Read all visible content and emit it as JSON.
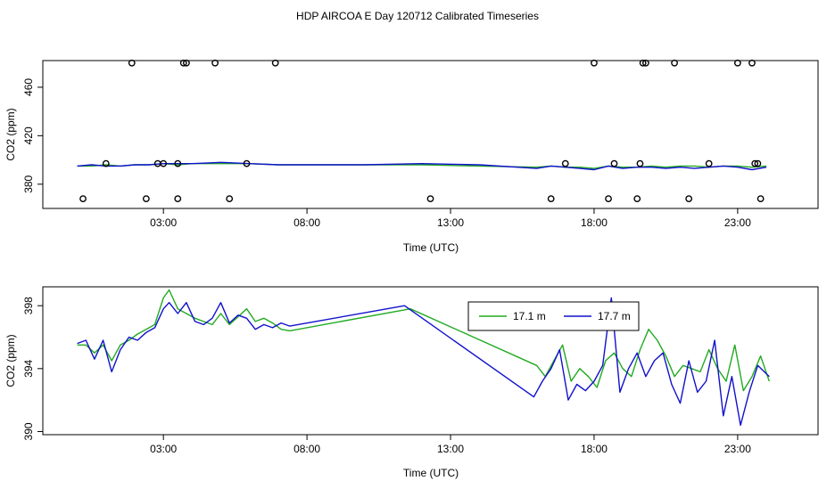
{
  "figure": {
    "title": "HDP AIRCOA E  Day 120712  Calibrated Timeseries"
  },
  "chart_data": [
    {
      "type": "line",
      "panel": "top",
      "xlabel": "Time (UTC)",
      "ylabel": "CO2 (ppm)",
      "xlim": [
        -1.2,
        25.8
      ],
      "ylim": [
        360,
        482
      ],
      "xticks": [
        3,
        8,
        13,
        18,
        23
      ],
      "xtick_labels": [
        "03:00",
        "08:00",
        "13:00",
        "18:00",
        "23:00"
      ],
      "yticks": [
        380,
        420,
        460
      ],
      "ytick_labels": [
        "380",
        "420",
        "460"
      ],
      "grid": false,
      "series": [
        {
          "color": "#22aa22",
          "x": [
            0,
            0.5,
            1,
            1.5,
            2,
            2.5,
            3,
            3.5,
            4,
            5,
            6,
            7,
            8,
            10,
            12,
            14,
            16,
            16.5,
            17,
            17.5,
            18,
            18.5,
            19,
            19.5,
            20,
            20.5,
            21,
            21.5,
            22,
            22.5,
            23,
            23.5,
            24
          ],
          "values": [
            395,
            395,
            396,
            395,
            396,
            396,
            397,
            396,
            397,
            397,
            397,
            396,
            396,
            396,
            396,
            395,
            394,
            395,
            394,
            394,
            393,
            395,
            394,
            394,
            395,
            394,
            395,
            395,
            394,
            395,
            395,
            394,
            395
          ]
        },
        {
          "color": "#1111cc",
          "x": [
            0,
            0.5,
            1,
            1.5,
            2,
            2.5,
            3,
            3.5,
            4,
            5,
            6,
            7,
            8,
            10,
            12,
            14,
            16,
            16.5,
            17,
            17.5,
            18,
            18.5,
            19,
            19.5,
            20,
            20.5,
            21,
            21.5,
            22,
            22.5,
            23,
            23.5,
            24
          ],
          "values": [
            395,
            396,
            395,
            395,
            396,
            396,
            397,
            397,
            397,
            398,
            397,
            396,
            396,
            396,
            397,
            396,
            393,
            395,
            394,
            393,
            392,
            395,
            393,
            394,
            394,
            393,
            394,
            393,
            394,
            395,
            394,
            392,
            394
          ]
        },
        {
          "type": "scatter",
          "name": "",
          "marker": "open-circle",
          "color": "#000000",
          "x": [
            0.2,
            1.0,
            1.9,
            2.4,
            2.8,
            3.0,
            3.5,
            3.5,
            3.7,
            3.8,
            4.8,
            5.3,
            5.9,
            6.9,
            12.3,
            16.5,
            17.0,
            18.0,
            18.5,
            18.7,
            19.5,
            19.6,
            19.7,
            19.8,
            20.8,
            21.3,
            22.0,
            23.0,
            23.5,
            23.6,
            23.7,
            23.8
          ],
          "values": [
            368,
            397,
            480,
            368,
            397,
            397,
            368,
            397,
            480,
            480,
            480,
            368,
            397,
            480,
            368,
            368,
            397,
            480,
            368,
            397,
            368,
            397,
            480,
            480,
            480,
            368,
            397,
            480,
            480,
            397,
            397,
            368
          ]
        }
      ]
    },
    {
      "type": "line",
      "panel": "bottom",
      "xlabel": "Time (UTC)",
      "ylabel": "CO2 (ppm)",
      "xlim": [
        -1.2,
        25.8
      ],
      "ylim": [
        389.8,
        399.2
      ],
      "xticks": [
        3,
        8,
        13,
        18,
        23
      ],
      "xtick_labels": [
        "03:00",
        "08:00",
        "13:00",
        "18:00",
        "23:00"
      ],
      "yticks": [
        390,
        394,
        398
      ],
      "ytick_labels": [
        "390",
        "394",
        "398"
      ],
      "grid": false,
      "legend": {
        "position": "top-right",
        "entries": [
          "17.1 m",
          "17.7 m"
        ]
      },
      "series": [
        {
          "name": "17.1 m",
          "color": "#22aa22",
          "x": [
            0,
            0.3,
            0.6,
            0.9,
            1.2,
            1.5,
            1.8,
            2.1,
            2.4,
            2.7,
            3.0,
            3.2,
            3.5,
            3.8,
            4.1,
            4.4,
            4.7,
            5.0,
            5.3,
            5.6,
            5.9,
            6.2,
            6.5,
            6.8,
            7.1,
            7.4,
            11.6,
            16.0,
            16.3,
            16.6,
            16.9,
            17.2,
            17.5,
            17.8,
            18.1,
            18.4,
            18.7,
            19.0,
            19.3,
            19.6,
            19.9,
            20.2,
            20.5,
            20.8,
            21.1,
            21.4,
            21.7,
            22.0,
            22.3,
            22.6,
            22.9,
            23.2,
            23.5,
            23.8,
            24.1
          ],
          "values": [
            395.5,
            395.5,
            395.0,
            395.5,
            394.5,
            395.5,
            395.8,
            396.2,
            396.5,
            396.8,
            398.5,
            399.0,
            397.8,
            397.5,
            397.2,
            397.0,
            396.8,
            397.5,
            396.8,
            397.3,
            397.8,
            397.0,
            397.2,
            396.9,
            396.5,
            396.4,
            397.8,
            394.2,
            393.5,
            394.5,
            395.5,
            393.2,
            394.0,
            393.5,
            392.8,
            394.5,
            395.0,
            394.0,
            393.5,
            395.2,
            396.5,
            395.8,
            394.8,
            393.5,
            394.2,
            394.0,
            393.8,
            395.2,
            394.0,
            393.2,
            395.5,
            392.6,
            393.5,
            394.8,
            393.2
          ]
        },
        {
          "name": "17.7 m",
          "color": "#1111cc",
          "x": [
            0,
            0.3,
            0.6,
            0.9,
            1.2,
            1.5,
            1.8,
            2.1,
            2.4,
            2.7,
            3.0,
            3.2,
            3.5,
            3.8,
            4.1,
            4.4,
            4.7,
            5.0,
            5.3,
            5.6,
            5.9,
            6.2,
            6.5,
            6.8,
            7.1,
            7.4,
            11.4,
            15.9,
            16.2,
            16.5,
            16.8,
            17.1,
            17.4,
            17.7,
            18.0,
            18.3,
            18.6,
            18.9,
            19.2,
            19.5,
            19.8,
            20.1,
            20.4,
            20.7,
            21.0,
            21.3,
            21.6,
            21.9,
            22.2,
            22.5,
            22.8,
            23.1,
            23.4,
            23.7,
            24.1
          ],
          "values": [
            395.6,
            395.8,
            394.6,
            395.8,
            393.8,
            395.2,
            396.0,
            395.8,
            396.3,
            396.6,
            397.8,
            398.2,
            397.5,
            398.2,
            397.0,
            396.8,
            397.2,
            398.2,
            396.9,
            397.4,
            397.2,
            396.5,
            396.8,
            396.6,
            396.9,
            396.7,
            398.0,
            392.2,
            393.2,
            394.0,
            395.2,
            392.0,
            393.0,
            392.6,
            393.2,
            394.2,
            398.5,
            392.5,
            394.0,
            395.0,
            393.5,
            394.5,
            395.0,
            393.0,
            391.8,
            394.5,
            392.5,
            393.2,
            395.8,
            391.0,
            393.5,
            390.4,
            392.5,
            394.2,
            393.5
          ]
        }
      ]
    }
  ]
}
